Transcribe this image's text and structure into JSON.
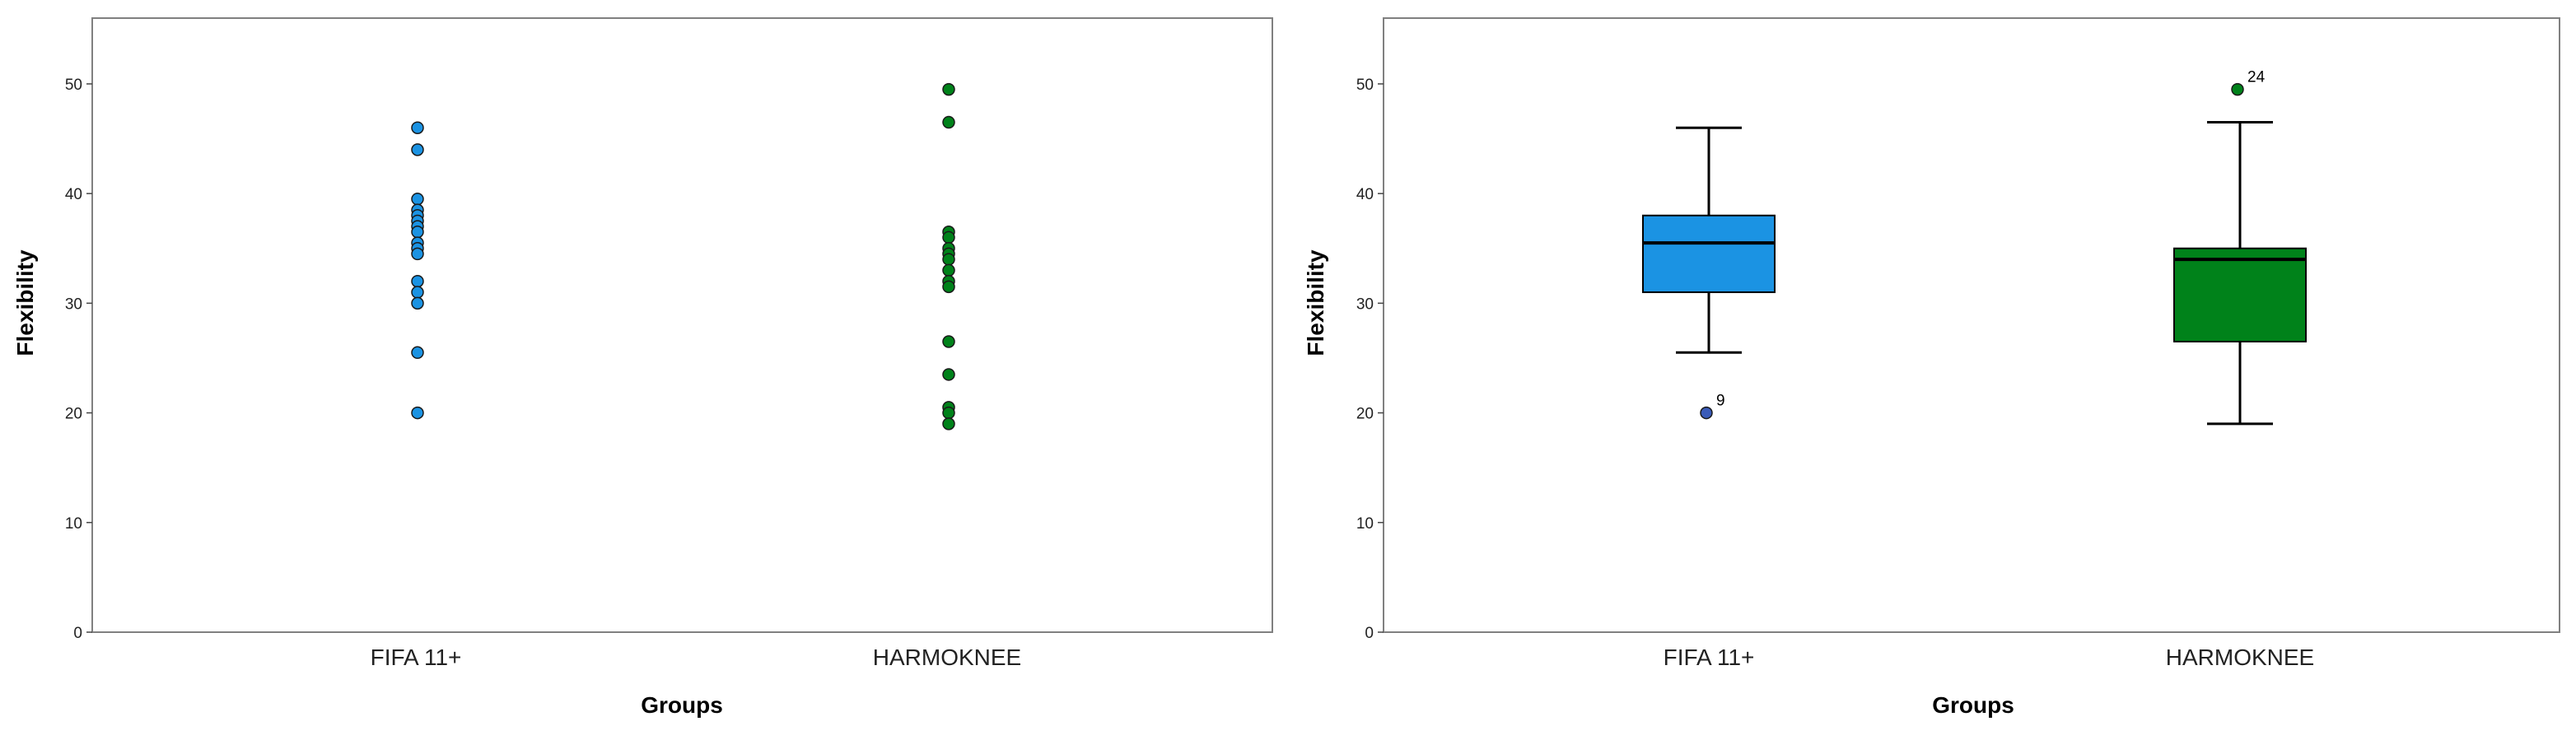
{
  "colors": {
    "fifa": "#1b93e3",
    "harmoknee": "#00821a",
    "outlier_fifa": "#3a5bb8",
    "frame": "#808080",
    "ink": "#000000"
  },
  "chart_data": [
    {
      "type": "scatter",
      "title": "",
      "xlabel": "Groups",
      "ylabel": "Flexibility",
      "categories": [
        "FIFA 11+",
        "HARMOKNEE"
      ],
      "ylim": [
        0,
        56
      ],
      "yticks": [
        0,
        10,
        20,
        30,
        40,
        50
      ],
      "grid": false,
      "series": [
        {
          "category": "FIFA 11+",
          "color": "#1b93e3",
          "values": [
            46,
            44,
            39.5,
            38.5,
            38,
            37.5,
            37,
            36.5,
            35.5,
            35,
            34.5,
            32,
            31,
            30,
            25.5,
            20
          ]
        },
        {
          "category": "HARMOKNEE",
          "color": "#00821a",
          "values": [
            49.5,
            46.5,
            36.5,
            36,
            35,
            34.5,
            34,
            33,
            32,
            31.5,
            26.5,
            23.5,
            20.5,
            20,
            19
          ]
        }
      ]
    },
    {
      "type": "box",
      "title": "",
      "xlabel": "Groups",
      "ylabel": "Flexibility",
      "categories": [
        "FIFA 11+",
        "HARMOKNEE"
      ],
      "ylim": [
        0,
        56
      ],
      "yticks": [
        0,
        10,
        20,
        30,
        40,
        50
      ],
      "grid": false,
      "boxes": [
        {
          "category": "FIFA 11+",
          "color": "#1b93e3",
          "whisker_low": 25.5,
          "q1": 31,
          "median": 35.5,
          "q3": 38,
          "whisker_high": 46,
          "outliers": [
            {
              "value": 20,
              "label": "9"
            }
          ]
        },
        {
          "category": "HARMOKNEE",
          "color": "#00821a",
          "whisker_low": 19,
          "q1": 26.5,
          "median": 34,
          "q3": 35,
          "whisker_high": 46.5,
          "outliers": [
            {
              "value": 49.5,
              "label": "24"
            }
          ]
        }
      ]
    }
  ]
}
